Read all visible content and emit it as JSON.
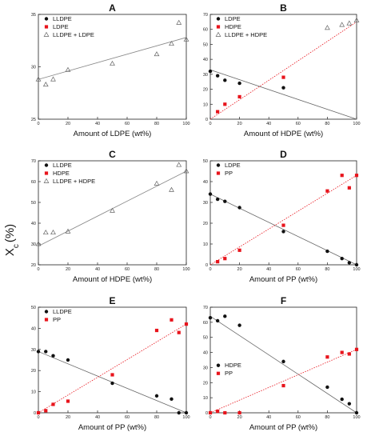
{
  "figure": {
    "ylabel_main": "X",
    "ylabel_sub": "c",
    "ylabel_unit": "(%)"
  },
  "colors": {
    "red": "#e8141c",
    "black": "#111111",
    "grey": "#666666",
    "fit_grey": "#888888"
  },
  "chart_data": [
    {
      "panel": "A",
      "type": "scatter",
      "title": "A",
      "xlabel": "Amount of LDPE (wt%)",
      "ylabel": "",
      "xlim": [
        0,
        100
      ],
      "ylim": [
        25,
        35
      ],
      "xticks": [
        0,
        20,
        40,
        60,
        80,
        100
      ],
      "yticks": [
        25,
        30,
        35
      ],
      "legend_position": "top-left",
      "series": [
        {
          "name": "LLDPE",
          "marker": "circle",
          "color": "black",
          "x": [],
          "y": []
        },
        {
          "name": "LDPE",
          "marker": "square",
          "color": "red",
          "x": [],
          "y": []
        },
        {
          "name": "LLDPE + LDPE",
          "marker": "triangle",
          "color": "grey",
          "x": [
            0,
            5,
            10,
            20,
            50,
            80,
            90,
            95,
            100
          ],
          "y": [
            28.8,
            28.3,
            28.8,
            29.7,
            30.3,
            31.2,
            32.2,
            34.2,
            32.6
          ],
          "fit": [
            [
              0,
              28.8
            ],
            [
              100,
              32.8
            ]
          ],
          "fit_style": "solid",
          "fit_color": "fit_grey"
        }
      ]
    },
    {
      "panel": "B",
      "type": "scatter",
      "title": "B",
      "xlabel": "Amount of HDPE (wt%)",
      "ylabel": "",
      "xlim": [
        0,
        100
      ],
      "ylim": [
        0,
        70
      ],
      "xticks": [
        0,
        20,
        40,
        60,
        80,
        100
      ],
      "yticks": [
        0,
        10,
        20,
        30,
        40,
        50,
        60,
        70
      ],
      "legend_position": "top-left",
      "series": [
        {
          "name": "LDPE",
          "marker": "circle",
          "color": "black",
          "x": [
            0,
            5,
            10,
            20,
            50
          ],
          "y": [
            32,
            29,
            26,
            24,
            21
          ],
          "fit": [
            [
              0,
              33
            ],
            [
              100,
              0
            ]
          ],
          "fit_style": "solid",
          "fit_color": "grey"
        },
        {
          "name": "HDPE",
          "marker": "square",
          "color": "red",
          "x": [
            5,
            10,
            20,
            50
          ],
          "y": [
            5,
            10,
            15,
            28
          ],
          "fit": [
            [
              0,
              0
            ],
            [
              100,
              65
            ]
          ],
          "fit_style": "dotted",
          "fit_color": "red"
        },
        {
          "name": "LLDPE + HDPE",
          "marker": "triangle",
          "color": "grey",
          "x": [
            80,
            90,
            95,
            100
          ],
          "y": [
            61,
            63,
            64,
            66
          ]
        }
      ]
    },
    {
      "panel": "C",
      "type": "scatter",
      "title": "C",
      "xlabel": "Amount of HDPE (wt%)",
      "ylabel": "",
      "xlim": [
        0,
        100
      ],
      "ylim": [
        20,
        70
      ],
      "xticks": [
        0,
        20,
        40,
        60,
        80,
        100
      ],
      "yticks": [
        20,
        30,
        40,
        50,
        60,
        70
      ],
      "legend_position": "top-left",
      "series": [
        {
          "name": "LLDPE",
          "marker": "circle",
          "color": "black",
          "x": [],
          "y": []
        },
        {
          "name": "HDPE",
          "marker": "square",
          "color": "red",
          "x": [],
          "y": []
        },
        {
          "name": "LLDPE + HDPE",
          "marker": "triangle",
          "color": "grey",
          "x": [
            0,
            5,
            10,
            20,
            50,
            80,
            90,
            95,
            100
          ],
          "y": [
            30,
            35.5,
            35.5,
            36,
            46,
            59,
            56,
            68,
            65
          ],
          "fit": [
            [
              0,
              29
            ],
            [
              100,
              65
            ]
          ],
          "fit_style": "solid",
          "fit_color": "fit_grey"
        }
      ]
    },
    {
      "panel": "D",
      "type": "scatter",
      "title": "D",
      "xlabel": "Amount of PP (wt%)",
      "ylabel": "",
      "xlim": [
        0,
        100
      ],
      "ylim": [
        0,
        50
      ],
      "xticks": [
        0,
        20,
        40,
        60,
        80,
        100
      ],
      "yticks": [
        0,
        10,
        20,
        30,
        40,
        50
      ],
      "legend_position": "top-left",
      "series": [
        {
          "name": "LDPE",
          "marker": "circle",
          "color": "black",
          "x": [
            0,
            5,
            10,
            20,
            50,
            80,
            90,
            95,
            100
          ],
          "y": [
            34,
            31.5,
            30.5,
            27.5,
            16,
            6.5,
            3,
            1,
            0
          ],
          "fit": [
            [
              0,
              34
            ],
            [
              100,
              0
            ]
          ],
          "fit_style": "solid",
          "fit_color": "grey"
        },
        {
          "name": "PP",
          "marker": "square",
          "color": "red",
          "x": [
            5,
            10,
            20,
            50,
            80,
            90,
            95,
            100
          ],
          "y": [
            1.5,
            3,
            7,
            19,
            35.5,
            43,
            37,
            43
          ],
          "fit": [
            [
              0,
              0
            ],
            [
              100,
              43
            ]
          ],
          "fit_style": "dotted",
          "fit_color": "red"
        }
      ]
    },
    {
      "panel": "E",
      "type": "scatter",
      "title": "E",
      "xlabel": "Amount of PP (wt%)",
      "ylabel": "",
      "xlim": [
        0,
        100
      ],
      "ylim": [
        0,
        50
      ],
      "xticks": [
        0,
        20,
        40,
        60,
        80,
        100
      ],
      "yticks": [
        0,
        10,
        20,
        30,
        40,
        50
      ],
      "legend_position": "top-left",
      "series": [
        {
          "name": "LLDPE",
          "marker": "circle",
          "color": "black",
          "x": [
            0,
            5,
            10,
            20,
            50,
            80,
            90,
            95,
            100
          ],
          "y": [
            29,
            29,
            27,
            25,
            14,
            8,
            6.5,
            0,
            0
          ],
          "fit": [
            [
              0,
              29
            ],
            [
              100,
              0
            ]
          ],
          "fit_style": "solid",
          "fit_color": "grey"
        },
        {
          "name": "PP",
          "marker": "square",
          "color": "red",
          "x": [
            0,
            5,
            10,
            20,
            50,
            80,
            90,
            95,
            100
          ],
          "y": [
            0,
            1,
            4,
            5.5,
            18,
            39,
            44,
            38,
            42
          ],
          "fit": [
            [
              0,
              0
            ],
            [
              100,
              42
            ]
          ],
          "fit_style": "dotted",
          "fit_color": "red"
        }
      ]
    },
    {
      "panel": "F",
      "type": "scatter",
      "title": "F",
      "xlabel": "Amount of PP (wt%)",
      "ylabel": "",
      "xlim": [
        0,
        100
      ],
      "ylim": [
        0,
        70
      ],
      "xticks": [
        0,
        20,
        40,
        60,
        80,
        100
      ],
      "yticks": [
        0,
        10,
        20,
        30,
        40,
        50,
        60,
        70
      ],
      "legend_position": "center-left",
      "series": [
        {
          "name": "HDPE",
          "marker": "circle",
          "color": "black",
          "x": [
            0,
            5,
            10,
            20,
            50,
            80,
            90,
            95,
            100
          ],
          "y": [
            63,
            61,
            64,
            58,
            34,
            17,
            9,
            6,
            0
          ],
          "fit": [
            [
              0,
              64
            ],
            [
              100,
              0
            ]
          ],
          "fit_style": "solid",
          "fit_color": "grey"
        },
        {
          "name": "PP",
          "marker": "square",
          "color": "red",
          "x": [
            0,
            5,
            10,
            20,
            50,
            80,
            90,
            95,
            100
          ],
          "y": [
            0,
            1,
            0,
            0,
            18,
            37,
            40,
            39,
            42
          ],
          "fit": [
            [
              0,
              0
            ],
            [
              100,
              42
            ]
          ],
          "fit_style": "dotted",
          "fit_color": "red"
        }
      ]
    }
  ]
}
